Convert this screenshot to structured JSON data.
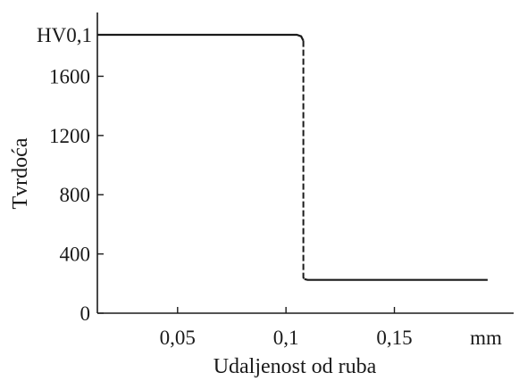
{
  "chart_data": {
    "type": "line",
    "title": "",
    "xlabel": "Udaljenost od ruba",
    "ylabel": "Tvrdoća",
    "xunit": "mm",
    "yunit": "HV0,1",
    "xlim": [
      0.013,
      0.205
    ],
    "ylim": [
      0,
      1880
    ],
    "x_ticks": [
      {
        "value": 0.05,
        "label": "0,05"
      },
      {
        "value": 0.1,
        "label": "0,1"
      },
      {
        "value": 0.15,
        "label": "0,15"
      }
    ],
    "y_ticks": [
      {
        "value": 0,
        "label": "0"
      },
      {
        "value": 400,
        "label": "400"
      },
      {
        "value": 800,
        "label": "800"
      },
      {
        "value": 1200,
        "label": "1200"
      },
      {
        "value": 1600,
        "label": "1600"
      }
    ],
    "grid": false,
    "series": [
      {
        "style": "solid",
        "x": [
          0.013,
          0.105,
          0.107,
          0.108
        ],
        "y": [
          1880,
          1880,
          1870,
          1840
        ]
      },
      {
        "style": "dashed",
        "x": [
          0.108,
          0.108,
          0.1085
        ],
        "y": [
          1840,
          240,
          230
        ]
      },
      {
        "style": "solid",
        "x": [
          0.1085,
          0.11,
          0.193
        ],
        "y": [
          230,
          225,
          225
        ]
      }
    ]
  }
}
